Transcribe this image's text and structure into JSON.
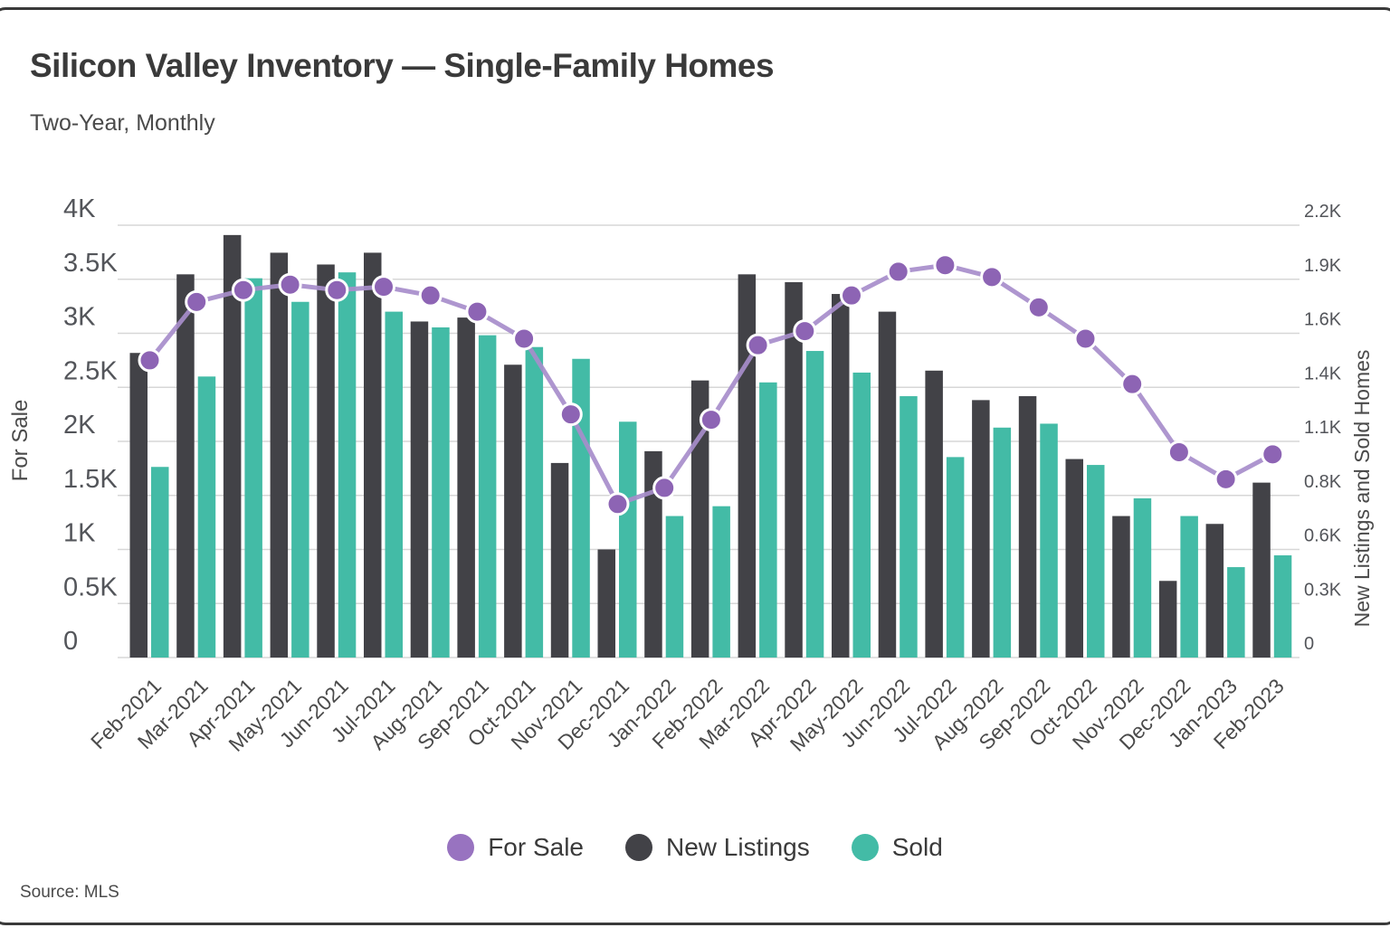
{
  "header": {
    "title": "Silicon Valley Inventory — Single-Family Homes",
    "subtitle": "Two-Year, Monthly"
  },
  "source": "Source: MLS",
  "legend": [
    {
      "label": "For Sale",
      "color": "#9873c0"
    },
    {
      "label": "New Listings",
      "color": "#424247"
    },
    {
      "label": "Sold",
      "color": "#43bba6"
    }
  ],
  "colors": {
    "grid": "#d7d7d7",
    "bar_new_listings": "#424247",
    "bar_sold": "#43bba6",
    "line_for_sale": "#a78dcb",
    "marker_for_sale": "#8d64b4",
    "tick_text": "#53555a",
    "label_text": "#4a4a4a"
  },
  "axes": {
    "left": {
      "title": "For Sale",
      "ticks": [
        "4K",
        "3.5K",
        "3K",
        "2.5K",
        "2K",
        "1.5K",
        "1K",
        "0.5K",
        "0"
      ],
      "max": 4000
    },
    "right": {
      "title": "New Listings and Sold Homes",
      "ticks": [
        "2.2K",
        "1.9K",
        "1.6K",
        "1.4K",
        "1.1K",
        "0.8K",
        "0.6K",
        "0.3K",
        "0"
      ],
      "max": 2200
    }
  },
  "chart_data": {
    "type": "bar",
    "subtype": "grouped bars + line overlay, dual axis",
    "title": "Silicon Valley Inventory — Single-Family Homes",
    "subtitle": "Two-Year, Monthly",
    "categories": [
      "Feb-2021",
      "Mar-2021",
      "Apr-2021",
      "May-2021",
      "Jun-2021",
      "Jul-2021",
      "Aug-2021",
      "Sep-2021",
      "Oct-2021",
      "Nov-2021",
      "Dec-2021",
      "Jan-2022",
      "Feb-2022",
      "Mar-2022",
      "Apr-2022",
      "May-2022",
      "Jun-2022",
      "Jul-2022",
      "Aug-2022",
      "Sep-2022",
      "Oct-2022",
      "Nov-2022",
      "Dec-2022",
      "Jan-2023",
      "Feb-2023"
    ],
    "series": [
      {
        "name": "New Listings",
        "type": "bar",
        "axis": "right",
        "values": [
          1550,
          1950,
          2150,
          2060,
          2000,
          2060,
          1710,
          1730,
          1490,
          990,
          550,
          1050,
          1410,
          1950,
          1910,
          1850,
          1760,
          1460,
          1310,
          1330,
          1010,
          720,
          390,
          680,
          890
        ]
      },
      {
        "name": "Sold",
        "type": "bar",
        "axis": "right",
        "values": [
          970,
          1430,
          1930,
          1810,
          1960,
          1760,
          1680,
          1640,
          1580,
          1520,
          1200,
          720,
          770,
          1400,
          1560,
          1450,
          1330,
          1020,
          1170,
          1190,
          980,
          810,
          720,
          460,
          520
        ]
      },
      {
        "name": "For Sale",
        "type": "line",
        "axis": "left",
        "values": [
          2750,
          3290,
          3400,
          3450,
          3400,
          3430,
          3350,
          3200,
          2950,
          2250,
          1420,
          1570,
          2200,
          2890,
          3020,
          3350,
          3570,
          3630,
          3520,
          3240,
          2950,
          2530,
          1900,
          1650,
          1880
        ]
      }
    ],
    "left_ylabel": "For Sale",
    "right_ylabel": "New Listings and Sold Homes",
    "left_ylim": [
      0,
      4000
    ],
    "right_ylim": [
      0,
      2200
    ],
    "grid": "horizontal only",
    "legend_position": "bottom center",
    "x_tick_rotation": -45
  }
}
